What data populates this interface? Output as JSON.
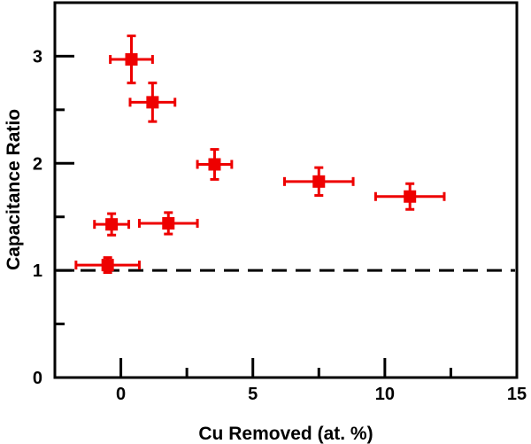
{
  "chart_data": {
    "type": "scatter",
    "xlabel": "Cu Removed (at. %)",
    "ylabel": "Capacitance Ratio",
    "xlim": [
      -2.5,
      15
    ],
    "ylim": [
      0,
      3.5
    ],
    "x_ticks": [
      0,
      5,
      10,
      15
    ],
    "y_ticks": [
      0,
      1,
      2,
      3
    ],
    "reference_line": {
      "y": 1,
      "style": "dashed"
    },
    "marker": "square",
    "color": "#ee0000",
    "points": [
      {
        "x": -0.5,
        "y": 1.05,
        "xerr": 1.2,
        "yerr": 0.07
      },
      {
        "x": -0.35,
        "y": 1.43,
        "xerr": 0.65,
        "yerr": 0.1
      },
      {
        "x": 0.4,
        "y": 2.97,
        "xerr": 0.8,
        "yerr": 0.22
      },
      {
        "x": 1.2,
        "y": 2.57,
        "xerr": 0.85,
        "yerr": 0.18
      },
      {
        "x": 1.8,
        "y": 1.44,
        "xerr": 1.1,
        "yerr": 0.1
      },
      {
        "x": 3.55,
        "y": 1.99,
        "xerr": 0.65,
        "yerr": 0.14
      },
      {
        "x": 7.5,
        "y": 1.83,
        "xerr": 1.3,
        "yerr": 0.13
      },
      {
        "x": 10.95,
        "y": 1.69,
        "xerr": 1.3,
        "yerr": 0.12
      }
    ]
  }
}
